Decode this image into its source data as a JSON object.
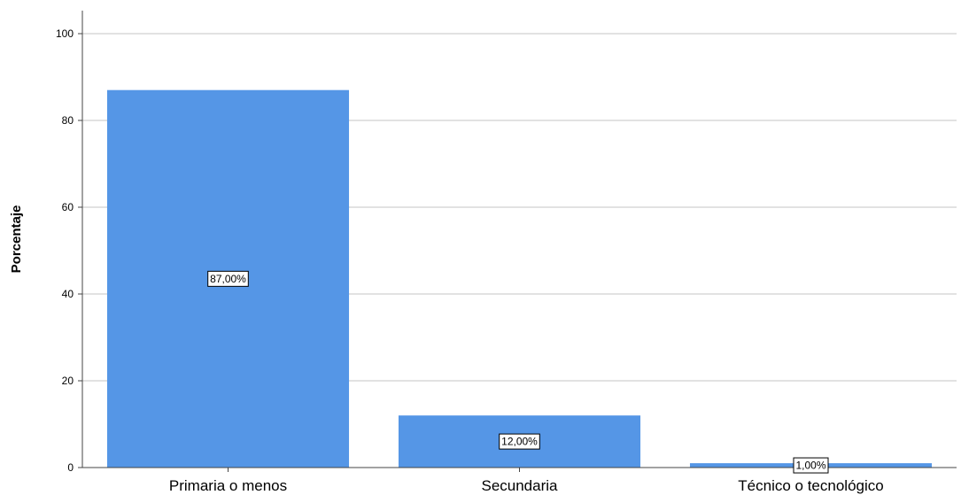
{
  "chart_data": {
    "type": "bar",
    "title": "",
    "xlabel": "",
    "ylabel": "Porcentaje",
    "categories": [
      "Primaria o menos",
      "Secundaria",
      "Técnico o tecnológico"
    ],
    "values": [
      87.0,
      12.0,
      1.0
    ],
    "data_labels": [
      "87,00%",
      "12,00%",
      "1,00%"
    ],
    "yticks": [
      0,
      20,
      40,
      60,
      80,
      100
    ],
    "ylim": [
      0,
      100
    ],
    "grid": true,
    "legend": "none",
    "colors": {
      "bar": "#5596e6",
      "grid": "#d0d0d0",
      "axis": "#444444"
    }
  }
}
